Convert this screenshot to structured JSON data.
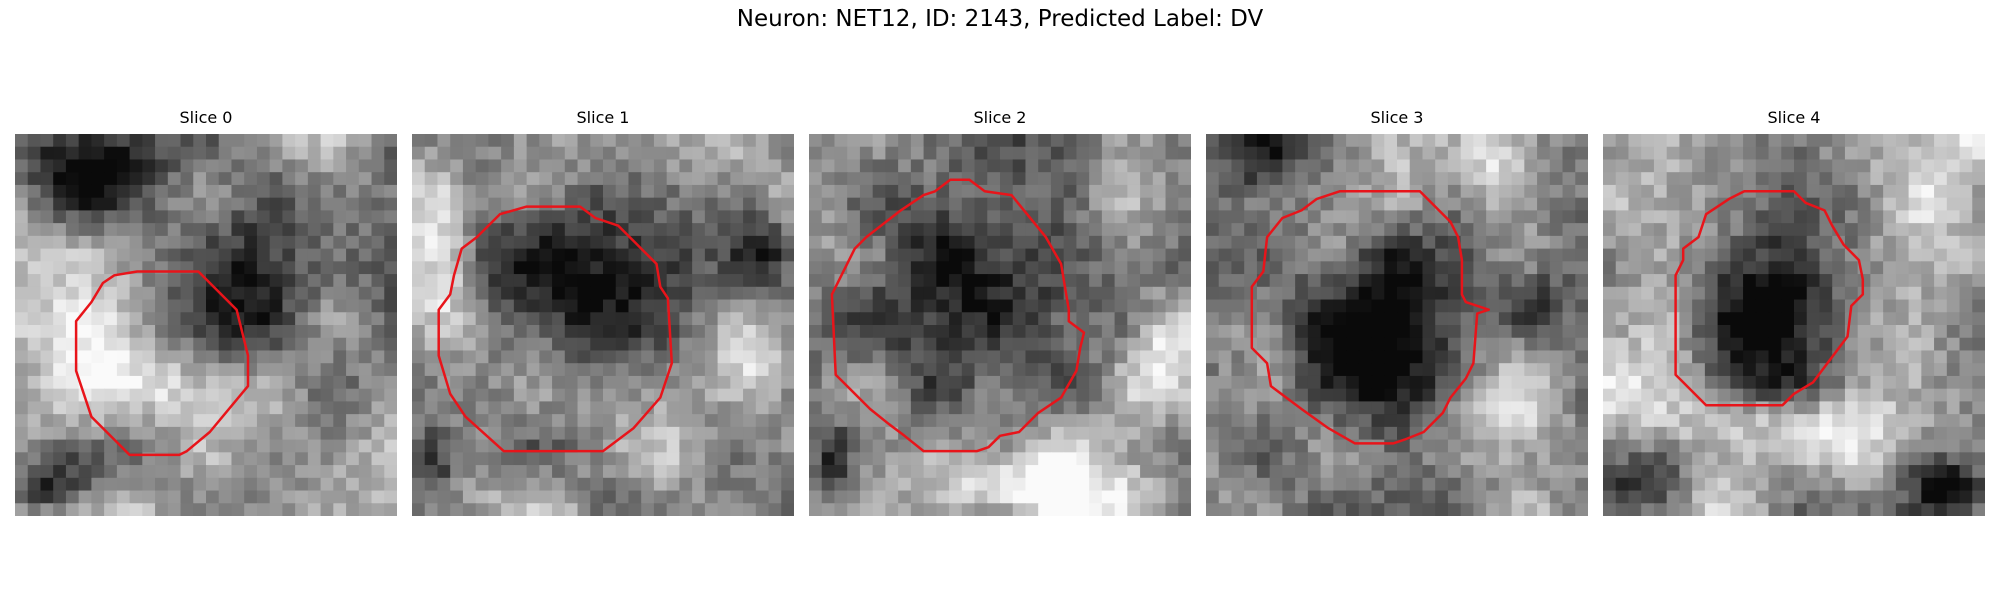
{
  "figure": {
    "title": "Neuron: NET12, ID: 2143, Predicted Label: DV",
    "contour_color": "#e8141a"
  },
  "panels": [
    {
      "title": "Slice 0"
    },
    {
      "title": "Slice 1"
    },
    {
      "title": "Slice 2"
    },
    {
      "title": "Slice 3"
    },
    {
      "title": "Slice 4"
    }
  ]
}
